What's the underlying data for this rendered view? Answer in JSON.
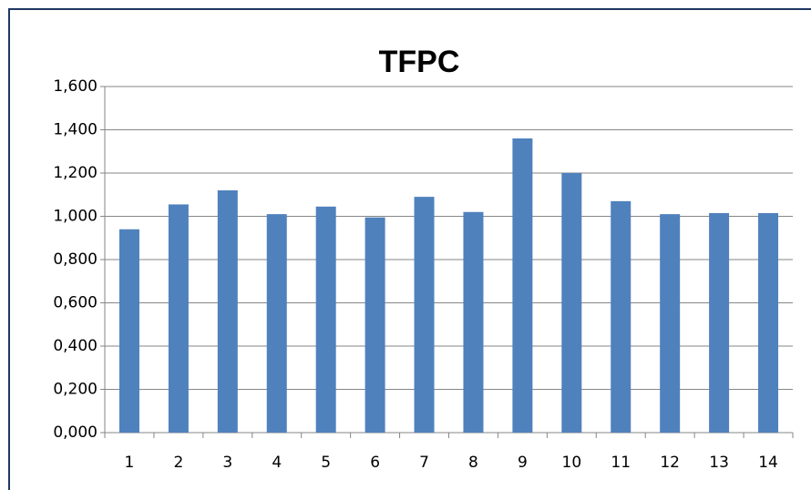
{
  "chart_data": {
    "type": "bar",
    "title": "TFPC",
    "categories": [
      "1",
      "2",
      "3",
      "4",
      "5",
      "6",
      "7",
      "8",
      "9",
      "10",
      "11",
      "12",
      "13",
      "14"
    ],
    "values": [
      0.94,
      1.055,
      1.12,
      1.01,
      1.045,
      0.995,
      1.09,
      1.02,
      1.36,
      1.2,
      1.07,
      1.01,
      1.015,
      1.015
    ],
    "color": "#4f81bd",
    "ylim": [
      0,
      1.6
    ],
    "yticks": [
      {
        "value": 0,
        "label": "0,000"
      },
      {
        "value": 0.2,
        "label": "0,200"
      },
      {
        "value": 0.4,
        "label": "0,400"
      },
      {
        "value": 0.6,
        "label": "0,600"
      },
      {
        "value": 0.8,
        "label": "0,800"
      },
      {
        "value": 1,
        "label": "1,000"
      },
      {
        "value": 1.2,
        "label": "1,200"
      },
      {
        "value": 1.4,
        "label": "1,400"
      },
      {
        "value": 1.6,
        "label": "1,600"
      }
    ],
    "grid": true
  }
}
